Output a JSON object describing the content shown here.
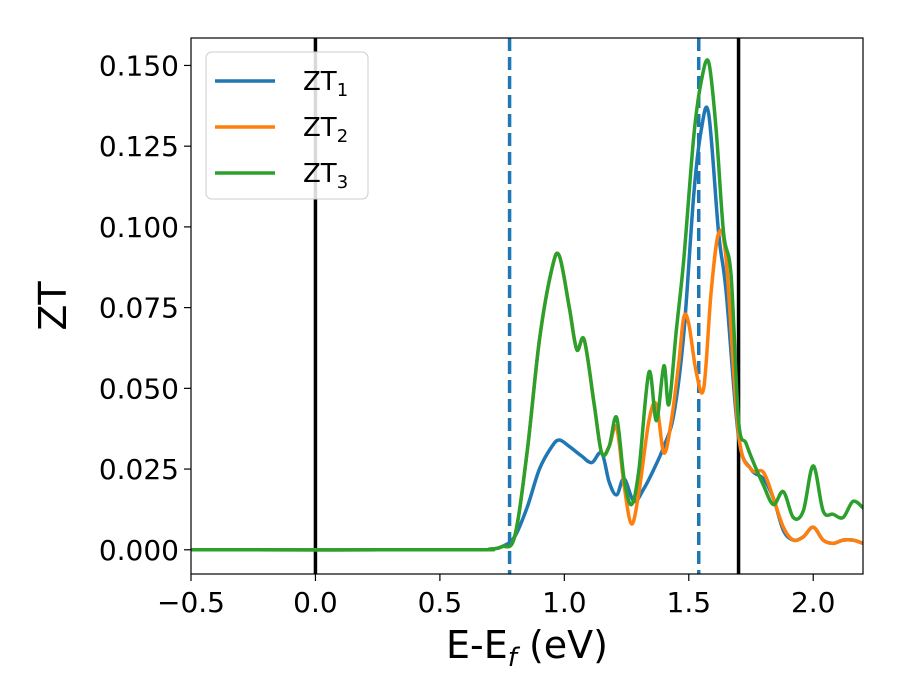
{
  "chart_data": {
    "type": "line",
    "xlabel": {
      "main": "E-E",
      "sub": "f",
      "unit": " (eV)"
    },
    "ylabel": "ZT",
    "xlim": [
      -0.5,
      2.2
    ],
    "ylim": [
      -0.0075,
      0.1585
    ],
    "x_ticks": [
      -0.5,
      0.0,
      0.5,
      1.0,
      1.5,
      2.0
    ],
    "x_tick_labels": [
      "−0.5",
      "0.0",
      "0.5",
      "1.0",
      "1.5",
      "2.0"
    ],
    "y_ticks": [
      0.0,
      0.025,
      0.05,
      0.075,
      0.1,
      0.125,
      0.15
    ],
    "y_tick_labels": [
      "0.000",
      "0.025",
      "0.050",
      "0.075",
      "0.100",
      "0.125",
      "0.150"
    ],
    "grid": false,
    "legend_position": "top-left",
    "vertical_lines": [
      {
        "x": 0.0,
        "style": "solid",
        "color": "#000000"
      },
      {
        "x": 0.78,
        "style": "dashed",
        "color": "#1f77b4"
      },
      {
        "x": 1.54,
        "style": "dashed",
        "color": "#1f77b4"
      },
      {
        "x": 1.7,
        "style": "solid",
        "color": "#000000"
      }
    ],
    "series": [
      {
        "name": {
          "main": "ZT",
          "sub": "1"
        },
        "color": "#1f77b4",
        "x": [
          -0.5,
          0.6,
          0.7,
          0.75,
          0.8,
          0.85,
          0.9,
          0.95,
          0.98,
          1.02,
          1.07,
          1.11,
          1.15,
          1.18,
          1.21,
          1.24,
          1.28,
          1.32,
          1.36,
          1.4,
          1.44,
          1.48,
          1.52,
          1.55,
          1.58,
          1.62,
          1.65,
          1.7,
          1.75,
          1.8,
          1.84,
          1.88,
          1.92,
          1.96,
          2.0,
          2.04,
          2.08,
          2.12,
          2.16,
          2.2
        ],
        "y": [
          0.0,
          0.0,
          0.0002,
          0.001,
          0.004,
          0.013,
          0.025,
          0.032,
          0.034,
          0.032,
          0.029,
          0.027,
          0.03,
          0.021,
          0.017,
          0.022,
          0.015,
          0.019,
          0.025,
          0.032,
          0.042,
          0.067,
          0.11,
          0.13,
          0.135,
          0.098,
          0.08,
          0.035,
          0.025,
          0.022,
          0.016,
          0.006,
          0.003,
          0.004,
          0.007,
          0.003,
          0.002,
          0.003,
          0.003,
          0.002
        ]
      },
      {
        "name": {
          "main": "ZT",
          "sub": "2"
        },
        "color": "#ff7f0e",
        "x": [
          -0.5,
          0.6,
          0.7,
          0.75,
          0.8,
          0.85,
          0.9,
          0.95,
          0.98,
          1.02,
          1.05,
          1.08,
          1.12,
          1.15,
          1.18,
          1.21,
          1.24,
          1.27,
          1.3,
          1.34,
          1.37,
          1.4,
          1.43,
          1.46,
          1.48,
          1.5,
          1.53,
          1.56,
          1.59,
          1.62,
          1.65,
          1.7,
          1.75,
          1.8,
          1.84,
          1.88,
          1.92,
          1.96,
          2.0,
          2.04,
          2.08,
          2.12,
          2.16,
          2.2
        ],
        "y": [
          0.0,
          0.0,
          0.0002,
          0.001,
          0.004,
          0.03,
          0.065,
          0.087,
          0.091,
          0.075,
          0.062,
          0.065,
          0.045,
          0.03,
          0.032,
          0.038,
          0.02,
          0.008,
          0.018,
          0.04,
          0.045,
          0.03,
          0.04,
          0.058,
          0.072,
          0.07,
          0.055,
          0.05,
          0.08,
          0.098,
          0.09,
          0.036,
          0.025,
          0.024,
          0.016,
          0.007,
          0.003,
          0.004,
          0.007,
          0.003,
          0.002,
          0.003,
          0.003,
          0.002
        ]
      },
      {
        "name": {
          "main": "ZT",
          "sub": "3"
        },
        "color": "#2ca02c",
        "x": [
          -0.5,
          0.6,
          0.7,
          0.75,
          0.8,
          0.85,
          0.9,
          0.95,
          0.98,
          1.02,
          1.05,
          1.08,
          1.12,
          1.15,
          1.18,
          1.21,
          1.24,
          1.27,
          1.3,
          1.34,
          1.37,
          1.4,
          1.42,
          1.45,
          1.48,
          1.52,
          1.55,
          1.58,
          1.61,
          1.64,
          1.67,
          1.7,
          1.73,
          1.76,
          1.8,
          1.84,
          1.88,
          1.92,
          1.96,
          2.0,
          2.04,
          2.08,
          2.12,
          2.16,
          2.2
        ],
        "y": [
          0.0,
          0.0,
          0.0002,
          0.001,
          0.004,
          0.03,
          0.065,
          0.087,
          0.091,
          0.075,
          0.062,
          0.065,
          0.045,
          0.03,
          0.032,
          0.041,
          0.022,
          0.014,
          0.025,
          0.055,
          0.04,
          0.057,
          0.045,
          0.068,
          0.09,
          0.128,
          0.145,
          0.151,
          0.13,
          0.098,
          0.085,
          0.04,
          0.033,
          0.027,
          0.02,
          0.014,
          0.018,
          0.01,
          0.012,
          0.026,
          0.012,
          0.011,
          0.01,
          0.015,
          0.013
        ]
      }
    ]
  }
}
